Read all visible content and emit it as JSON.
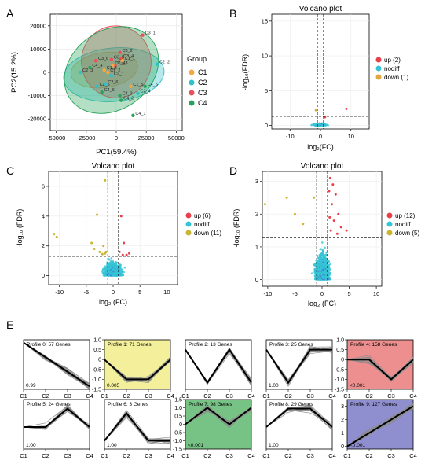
{
  "panel_labels": [
    "A",
    "B",
    "C",
    "D",
    "E"
  ],
  "chart_data": [
    {
      "type": "scatter",
      "panel": "A",
      "xlabel": "PC1(59.4%)",
      "ylabel": "PC2(15.2%)",
      "xlim": [
        -55000,
        55000
      ],
      "ylim": [
        -25000,
        25000
      ],
      "x_ticks": [
        "-50000",
        "-25000",
        "0",
        "25000",
        "50000"
      ],
      "x_tick_values": [
        -50000,
        -25000,
        0,
        25000,
        50000
      ],
      "y_ticks": [
        "20000",
        "10000",
        "0",
        "-10000",
        "-20000"
      ],
      "y_tick_values": [
        20000,
        10000,
        0,
        -10000,
        -20000
      ],
      "legend_title": "Group",
      "legend_position": "right",
      "groups": [
        {
          "name": "C1",
          "color": "#f4a742",
          "ellipse": {
            "cx": -10000,
            "cy": 1000,
            "rx": 28000,
            "ry": 7500,
            "angle": -8
          }
        },
        {
          "name": "C2",
          "color": "#2fc1c9",
          "ellipse": {
            "cx": -2000,
            "cy": -1000,
            "rx": 42000,
            "ry": 11500,
            "angle": -5
          }
        },
        {
          "name": "C3",
          "color": "#e8505b",
          "ellipse": {
            "cx": 0,
            "cy": 4500,
            "rx": 29000,
            "ry": 15500,
            "angle": -12
          }
        },
        {
          "name": "C4",
          "color": "#27a35a",
          "ellipse": {
            "cx": -4000,
            "cy": 1000,
            "rx": 42000,
            "ry": 17000,
            "angle": -35
          }
        }
      ],
      "points": [
        {
          "label": "C3_1",
          "group": "C3",
          "x": 22000,
          "y": 16000
        },
        {
          "label": "C3_2",
          "group": "C3",
          "x": 3000,
          "y": 8500
        },
        {
          "label": "C3_4",
          "group": "C3",
          "x": 4000,
          "y": 6000
        },
        {
          "label": "C3_6",
          "group": "C3",
          "x": -17000,
          "y": 5000
        },
        {
          "label": "C3_5",
          "group": "C3",
          "x": -4000,
          "y": 5500
        },
        {
          "label": "C3_3",
          "group": "C3",
          "x": -1000,
          "y": 3000
        },
        {
          "label": "C1_1",
          "group": "C1",
          "x": 5000,
          "y": 5000
        },
        {
          "label": "C1_4",
          "group": "C1",
          "x": -3000,
          "y": 3000
        },
        {
          "label": "C1_3",
          "group": "C1",
          "x": -10000,
          "y": 1000
        },
        {
          "label": "C1_2",
          "group": "C1",
          "x": -7000,
          "y": 0
        },
        {
          "label": "C1_5",
          "group": "C1",
          "x": 12000,
          "y": -6000
        },
        {
          "label": "C2_2",
          "group": "C2",
          "x": 34000,
          "y": 3500
        },
        {
          "label": "C2_3",
          "group": "C2",
          "x": -30000,
          "y": 0
        },
        {
          "label": "C2_1",
          "group": "C2",
          "x": -4000,
          "y": -1500
        },
        {
          "label": "C2_5",
          "group": "C2",
          "x": -16000,
          "y": -6000
        },
        {
          "label": "C2_6",
          "group": "C2",
          "x": -9000,
          "y": -5000
        },
        {
          "label": "C2_4",
          "group": "C2",
          "x": 18000,
          "y": -9000
        },
        {
          "label": "C4_4",
          "group": "C4",
          "x": -22000,
          "y": 2000
        },
        {
          "label": "C4_5",
          "group": "C4",
          "x": 24000,
          "y": -6000
        },
        {
          "label": "C4_6",
          "group": "C4",
          "x": -12000,
          "y": -8500
        },
        {
          "label": "C4_2",
          "group": "C4",
          "x": 4000,
          "y": -12000
        },
        {
          "label": "C4_3",
          "group": "C4",
          "x": 3000,
          "y": -10000
        },
        {
          "label": "C4_1",
          "group": "C4",
          "x": 14000,
          "y": -18500
        }
      ]
    },
    {
      "type": "scatter",
      "panel": "B",
      "title": "Volcano plot",
      "xlabel": "log₂(FC)",
      "ylabel": "-log₁₀(FDR)",
      "xlim": [
        -16,
        16
      ],
      "ylim": [
        -0.5,
        16
      ],
      "x_ticks": [
        "-10",
        "0",
        "10"
      ],
      "x_tick_values": [
        -10,
        0,
        10
      ],
      "y_ticks": [
        "0",
        "5",
        "10",
        "15"
      ],
      "y_tick_values": [
        0,
        5,
        10,
        15
      ],
      "vlines": [
        -1,
        1
      ],
      "hline": 1.3,
      "legend_position": "right",
      "series": [
        {
          "name": "up (2)",
          "color": "#e8404a",
          "points": [
            [
              8.5,
              2.4
            ],
            [
              1.5,
              1.2
            ]
          ]
        },
        {
          "name": "nodiff",
          "color": "#35c4d4"
        },
        {
          "name": "down (1)",
          "color": "#e0a940",
          "points": [
            [
              -1.5,
              2.2
            ]
          ]
        }
      ]
    },
    {
      "type": "scatter",
      "panel": "C",
      "title": "Volcano plot",
      "xlabel": "log₂ (FC)",
      "ylabel": "-log₁₀ (FDR)",
      "xlim": [
        -12,
        12
      ],
      "ylim": [
        -0.6,
        7
      ],
      "x_ticks": [
        "-10",
        "-5",
        "0",
        "5",
        "10"
      ],
      "x_tick_values": [
        -10,
        -5,
        0,
        5,
        10
      ],
      "y_ticks": [
        "0",
        "2",
        "4",
        "6"
      ],
      "y_tick_values": [
        0,
        2,
        4,
        6
      ],
      "vlines": [
        -1,
        1
      ],
      "hline": 1.3,
      "legend_position": "right",
      "series": [
        {
          "name": "up (6)",
          "color": "#e8404a",
          "points": [
            [
              1.5,
              4.0
            ],
            [
              2.0,
              2.2
            ],
            [
              1.2,
              1.6
            ],
            [
              3.0,
              1.5
            ],
            [
              1.8,
              1.4
            ],
            [
              2.5,
              1.4
            ]
          ]
        },
        {
          "name": "nodiff",
          "color": "#35c4d4"
        },
        {
          "name": "down (11)",
          "color": "#c9b52f",
          "points": [
            [
              -1.5,
              6.4
            ],
            [
              -3.0,
              4.1
            ],
            [
              -11.0,
              2.8
            ],
            [
              -10.5,
              2.6
            ],
            [
              -3.5,
              1.8
            ],
            [
              -2.5,
              1.6
            ],
            [
              -1.5,
              1.5
            ],
            [
              -2.0,
              1.45
            ],
            [
              -4.0,
              2.2
            ],
            [
              -1.3,
              1.6
            ],
            [
              -1.8,
              2.0
            ]
          ]
        }
      ]
    },
    {
      "type": "scatter",
      "panel": "D",
      "title": "Volcano plot",
      "xlabel": "log₂ (FC)",
      "ylabel": "-log₁₀ (FDR)",
      "xlim": [
        -11,
        11
      ],
      "ylim": [
        -0.2,
        3.3
      ],
      "x_ticks": [
        "-10",
        "-5",
        "0",
        "5",
        "10"
      ],
      "x_tick_values": [
        -10,
        -5,
        0,
        5,
        10
      ],
      "y_ticks": [
        "0",
        "1",
        "2",
        "3"
      ],
      "y_tick_values": [
        0,
        1,
        2,
        3
      ],
      "vlines": [
        -1,
        1
      ],
      "hline": 1.3,
      "legend_position": "right",
      "series": [
        {
          "name": "up (12)",
          "color": "#e8404a",
          "points": [
            [
              1.5,
              3.1
            ],
            [
              2.0,
              2.9
            ],
            [
              1.3,
              2.7
            ],
            [
              2.5,
              2.6
            ],
            [
              1.8,
              2.3
            ],
            [
              3.0,
              2.0
            ],
            [
              1.4,
              1.9
            ],
            [
              2.2,
              1.8
            ],
            [
              3.5,
              1.6
            ],
            [
              1.6,
              1.5
            ],
            [
              4.5,
              1.5
            ],
            [
              2.8,
              1.4
            ]
          ]
        },
        {
          "name": "nodiff",
          "color": "#35c4d4"
        },
        {
          "name": "down (5)",
          "color": "#c9b52f",
          "points": [
            [
              -10.5,
              2.3
            ],
            [
              -6.5,
              2.5
            ],
            [
              -5.0,
              2.0
            ],
            [
              -3.5,
              1.7
            ],
            [
              -1.5,
              2.5
            ]
          ]
        }
      ]
    },
    {
      "type": "line",
      "panel": "E",
      "categories": [
        "C1",
        "C2",
        "C3",
        "C4"
      ],
      "profiles": [
        {
          "title": "Profile 0: 57 Genes",
          "pvalue": "0.99",
          "color": "#ffffff",
          "ylim": [
            -3.2,
            0.2
          ],
          "ticks": [],
          "tick_values": [],
          "trend": [
            0,
            -1,
            -2,
            -3
          ]
        },
        {
          "title": "Profile 1: 71 Genes",
          "pvalue": "0.005",
          "color": "#f3ef9a",
          "ylim": [
            -1.5,
            1.0
          ],
          "ticks": [
            "1.0",
            "0.5",
            "0",
            "-0.5",
            "-1.0",
            "-1.5"
          ],
          "tick_values": [
            1.0,
            0.5,
            0,
            -0.5,
            -1.0,
            -1.5
          ],
          "trend": [
            0,
            -1,
            -1,
            0
          ]
        },
        {
          "title": "Profile 2: 13 Genes",
          "pvalue": "",
          "color": "#ffffff",
          "ylim": [
            -1.2,
            0.3
          ],
          "ticks": [],
          "tick_values": [],
          "trend": [
            0,
            -1,
            0,
            -1
          ]
        },
        {
          "title": "Profile 3: 25 Genes",
          "pvalue": "1.00",
          "color": "#ffffff",
          "ylim": [
            -1.2,
            0.3
          ],
          "ticks": [],
          "tick_values": [],
          "trend": [
            0,
            -1,
            0,
            0
          ]
        },
        {
          "title": "Profile 4: 158 Genes",
          "pvalue": "<0.001",
          "color": "#ee8f8f",
          "ylim": [
            -1.5,
            1.0
          ],
          "ticks": [
            "1.0",
            "0.5",
            "0",
            "-0.5",
            "-1.0",
            "-1.5"
          ],
          "tick_values": [
            1.0,
            0.5,
            0,
            -0.5,
            -1.0,
            -1.5
          ],
          "trend": [
            0,
            0,
            -1,
            0
          ]
        },
        {
          "title": "Profile 5: 24 Genes",
          "pvalue": "1.00",
          "color": "#ffffff",
          "ylim": [
            -1.2,
            1.5
          ],
          "ticks": [],
          "tick_values": [],
          "trend": [
            0,
            0,
            1,
            0
          ]
        },
        {
          "title": "Profile 6: 3 Genes",
          "pvalue": "1.00",
          "color": "#ffffff",
          "ylim": [
            -0.3,
            1.5
          ],
          "ticks": [],
          "tick_values": [],
          "trend": [
            0,
            1,
            0,
            0
          ]
        },
        {
          "title": "Profile 7: 98 Genes",
          "pvalue": "<0.001",
          "color": "#77c285",
          "ylim": [
            -1.5,
            1.5
          ],
          "ticks": [
            "1.5",
            "1.0",
            "0.5",
            "0",
            "-0.5",
            "-1.0",
            "-1.5"
          ],
          "tick_values": [
            1.5,
            1.0,
            0.5,
            0,
            -0.5,
            -1.0,
            -1.5
          ],
          "trend": [
            0,
            1,
            0,
            1
          ]
        },
        {
          "title": "Profile 8: 29 Genes",
          "pvalue": "1.00",
          "color": "#ffffff",
          "ylim": [
            -1.2,
            1.5
          ],
          "ticks": [],
          "tick_values": [],
          "trend": [
            0,
            1,
            1,
            0
          ]
        },
        {
          "title": "Profile 9: 127 Genes",
          "pvalue": "<0.001",
          "color": "#8f8fd0",
          "ylim": [
            -0.2,
            3.5
          ],
          "ticks": [
            "3",
            "2",
            "1",
            "0"
          ],
          "tick_values": [
            3,
            2,
            1,
            0
          ],
          "trend": [
            0,
            1,
            2,
            3
          ]
        }
      ]
    }
  ]
}
